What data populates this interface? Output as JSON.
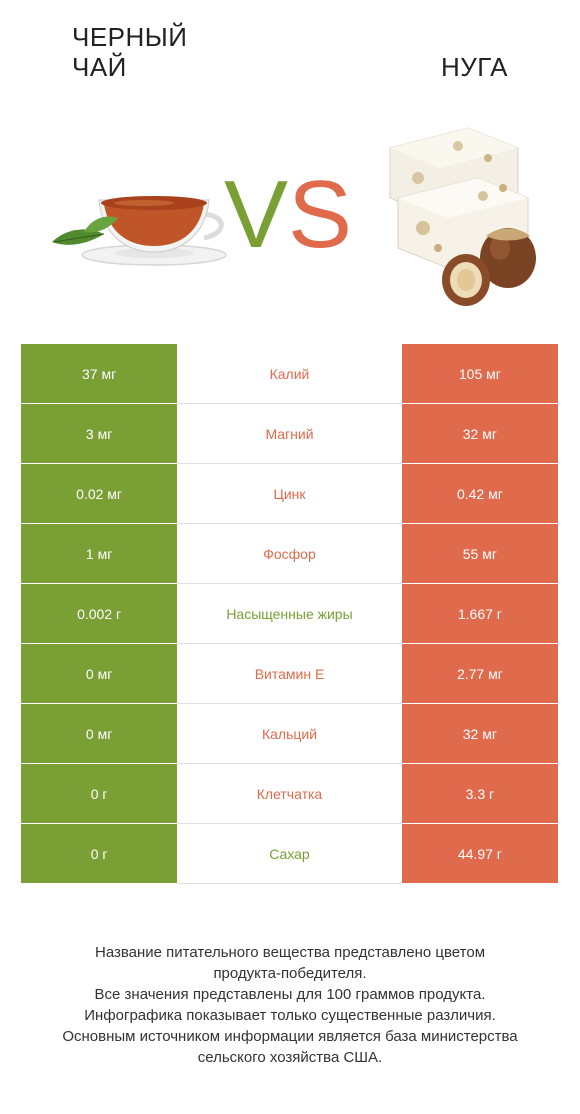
{
  "left_product": {
    "name": "ЧЕРНЫЙ ЧАЙ",
    "color": "#7a9f35",
    "image": "black-tea-cup-icon"
  },
  "right_product": {
    "name": "НУГА",
    "color": "#e06a4c",
    "image": "nougat-icon"
  },
  "vs": {
    "v": "V",
    "s": "S"
  },
  "rows": [
    {
      "left": "37 мг",
      "name": "Калий",
      "right": "105 мг",
      "winner": "right"
    },
    {
      "left": "3 мг",
      "name": "Магний",
      "right": "32 мг",
      "winner": "right"
    },
    {
      "left": "0.02 мг",
      "name": "Цинк",
      "right": "0.42 мг",
      "winner": "right"
    },
    {
      "left": "1 мг",
      "name": "Фосфор",
      "right": "55 мг",
      "winner": "right"
    },
    {
      "left": "0.002 г",
      "name": "Насыщенные жиры",
      "right": "1.667 г",
      "winner": "left"
    },
    {
      "left": "0 мг",
      "name": "Витамин E",
      "right": "2.77 мг",
      "winner": "right"
    },
    {
      "left": "0 мг",
      "name": "Кальций",
      "right": "32 мг",
      "winner": "right"
    },
    {
      "left": "0 г",
      "name": "Клетчатка",
      "right": "3.3 г",
      "winner": "right"
    },
    {
      "left": "0 г",
      "name": "Сахар",
      "right": "44.97 г",
      "winner": "left"
    }
  ],
  "footer": [
    "Название питательного вещества представлено цветом",
    "продукта-победителя.",
    "Все значения представлены для 100 граммов продукта.",
    "Инфографика показывает только существенные различия.",
    "Основным источником информации является база министерства",
    "сельского хозяйства США."
  ]
}
